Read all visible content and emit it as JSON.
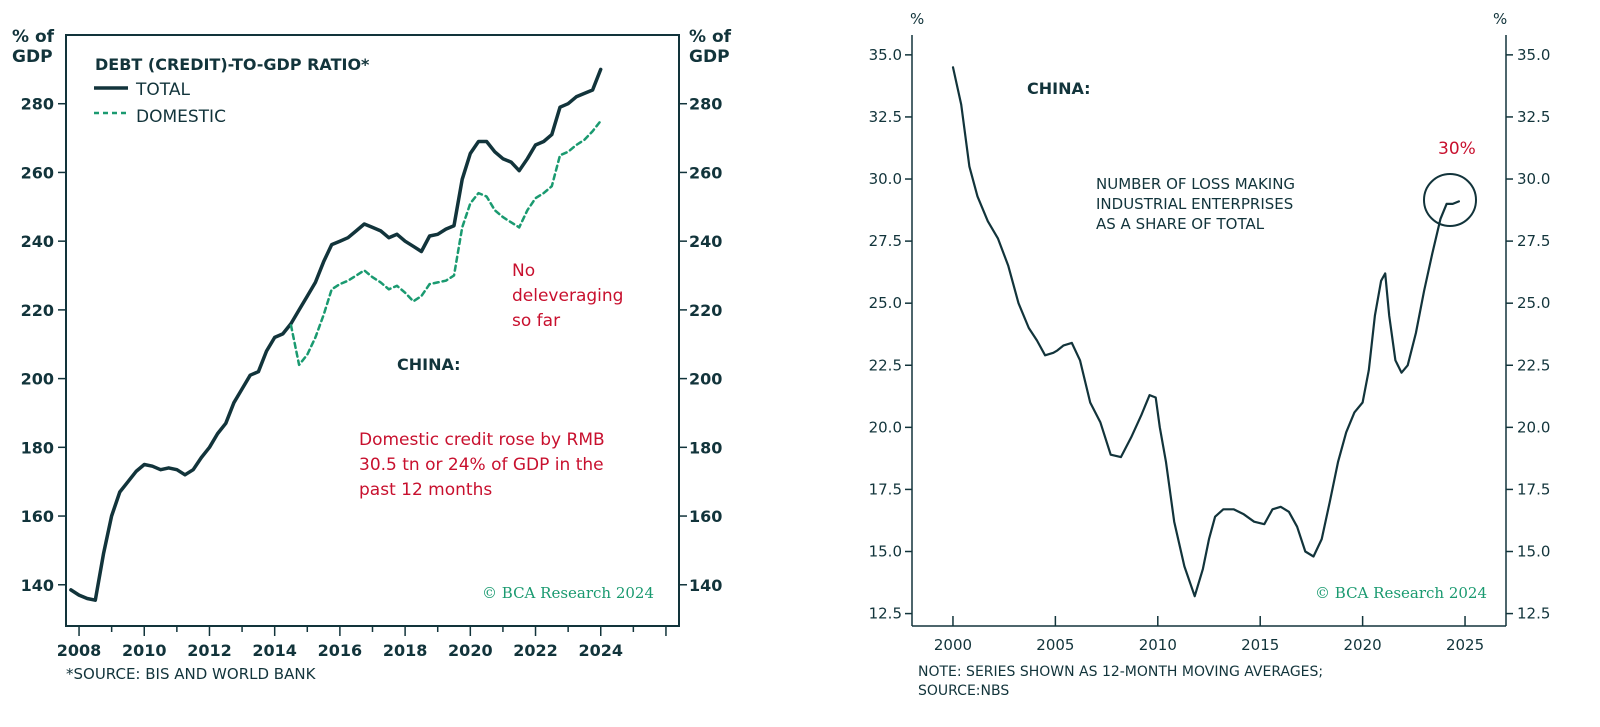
{
  "colors": {
    "navy": "#12343b",
    "green": "#1a9a70",
    "red": "#c8102e"
  },
  "chart_data": [
    {
      "type": "line",
      "title": "DEBT (CREDIT)-TO-GDP RATIO*",
      "ylabel_left": "% of GDP",
      "ylabel_right": "% of GDP",
      "ylim": [
        128,
        300
      ],
      "xlim": [
        2007.6,
        2026.4
      ],
      "xticks": [
        "2008",
        "2010",
        "2012",
        "2014",
        "2016",
        "2018",
        "2020",
        "2022",
        "2024"
      ],
      "yticks": [
        "140",
        "160",
        "180",
        "200",
        "220",
        "240",
        "260",
        "280"
      ],
      "panel_label": "CHINA:",
      "annotations": [
        "No",
        "deleveraging",
        "so far"
      ],
      "annotation2": [
        "Domestic credit rose by RMB",
        "30.5 tn or 24% of GDP in the",
        "past 12 months"
      ],
      "watermark": "© BCA Research 2024",
      "footnote": "*SOURCE: BIS AND WORLD BANK",
      "series": [
        {
          "name": "TOTAL",
          "style": "solid",
          "x": [
            2007.75,
            2008.0,
            2008.25,
            2008.5,
            2008.75,
            2009.0,
            2009.25,
            2009.5,
            2009.75,
            2010.0,
            2010.25,
            2010.5,
            2010.75,
            2011.0,
            2011.25,
            2011.5,
            2011.75,
            2012.0,
            2012.25,
            2012.5,
            2012.75,
            2013.0,
            2013.25,
            2013.5,
            2013.75,
            2014.0,
            2014.25,
            2014.5,
            2014.75,
            2015.0,
            2015.25,
            2015.5,
            2015.75,
            2016.0,
            2016.25,
            2016.5,
            2016.75,
            2017.0,
            2017.25,
            2017.5,
            2017.75,
            2018.0,
            2018.25,
            2018.5,
            2018.75,
            2019.0,
            2019.25,
            2019.5,
            2019.75,
            2020.0,
            2020.25,
            2020.5,
            2020.75,
            2021.0,
            2021.25,
            2021.5,
            2021.75,
            2022.0,
            2022.25,
            2022.5,
            2022.75,
            2023.0,
            2023.25,
            2023.5,
            2023.75,
            2024.0
          ],
          "values": [
            138.5,
            137,
            136,
            135.5,
            149,
            160,
            167,
            170,
            173,
            175,
            174.5,
            173.5,
            174,
            173.5,
            172,
            173.5,
            177,
            180,
            184,
            187,
            193,
            197,
            201,
            202,
            208,
            212,
            213,
            216,
            220,
            224,
            228,
            234,
            239,
            240,
            241,
            243,
            245,
            244,
            243,
            241,
            242,
            240,
            238.5,
            237,
            241.5,
            242,
            243.5,
            244.5,
            258,
            265.5,
            269,
            269,
            266,
            264,
            263,
            260.5,
            264,
            268,
            269,
            271,
            279,
            280,
            282,
            283,
            284,
            290
          ]
        },
        {
          "name": "DOMESTIC",
          "style": "dashed",
          "x": [
            2014.5,
            2014.75,
            2015.0,
            2015.25,
            2015.5,
            2015.75,
            2016.0,
            2016.25,
            2016.5,
            2016.75,
            2017.0,
            2017.25,
            2017.5,
            2017.75,
            2018.0,
            2018.25,
            2018.5,
            2018.75,
            2019.0,
            2019.25,
            2019.5,
            2019.75,
            2020.0,
            2020.25,
            2020.5,
            2020.75,
            2021.0,
            2021.25,
            2021.5,
            2021.75,
            2022.0,
            2022.25,
            2022.5,
            2022.75,
            2023.0,
            2023.25,
            2023.5,
            2023.75,
            2024.0
          ],
          "values": [
            215.5,
            204,
            207,
            212,
            218.5,
            226,
            227.5,
            228.5,
            230,
            231.5,
            229.5,
            228,
            226,
            227,
            225,
            222.5,
            224,
            227.5,
            228,
            228.5,
            230,
            244,
            251,
            254,
            253,
            249,
            247,
            245.5,
            244,
            249,
            252.5,
            254,
            256,
            265,
            266,
            268,
            269.5,
            272,
            275
          ]
        }
      ]
    },
    {
      "type": "line",
      "title": "NUMBER OF LOSS MAKING INDUSTRIAL ENTERPRISES AS A SHARE OF TOTAL",
      "title_lines": [
        "NUMBER OF LOSS MAKING",
        "INDUSTRIAL ENTERPRISES",
        "AS A SHARE OF TOTAL"
      ],
      "ylabel_left": "%",
      "ylabel_right": "%",
      "ylim": [
        12.0,
        35.8
      ],
      "xlim": [
        1998.0,
        2027.0
      ],
      "xticks": [
        "2000",
        "2005",
        "2010",
        "2015",
        "2020",
        "2025"
      ],
      "yticks": [
        "12.5",
        "15.0",
        "17.5",
        "20.0",
        "22.5",
        "25.0",
        "27.5",
        "30.0",
        "32.5",
        "35.0"
      ],
      "panel_label": "CHINA:",
      "highlight_label": "30%",
      "watermark": "© BCA Research 2024",
      "note_lines": [
        "NOTE: SERIES SHOWN AS 12-MONTH MOVING AVERAGES;",
        "SOURCE:NBS"
      ],
      "series": [
        {
          "name": "share",
          "style": "solid",
          "x": [
            2000.0,
            2000.4,
            2000.8,
            2001.2,
            2001.7,
            2002.2,
            2002.7,
            2003.2,
            2003.7,
            2004.1,
            2004.5,
            2004.9,
            2005.1,
            2005.4,
            2005.8,
            2006.2,
            2006.7,
            2007.2,
            2007.7,
            2008.2,
            2008.7,
            2009.2,
            2009.6,
            2009.9,
            2010.1,
            2010.4,
            2010.8,
            2011.3,
            2011.8,
            2012.2,
            2012.5,
            2012.8,
            2013.2,
            2013.7,
            2014.2,
            2014.7,
            2015.2,
            2015.6,
            2016.0,
            2016.4,
            2016.8,
            2017.2,
            2017.6,
            2018.0,
            2018.4,
            2018.8,
            2019.2,
            2019.6,
            2020.0,
            2020.3,
            2020.6,
            2020.9,
            2021.1,
            2021.3,
            2021.6,
            2021.9,
            2022.2,
            2022.6,
            2023.0,
            2023.4,
            2023.8,
            2024.1,
            2024.4,
            2024.7
          ],
          "values": [
            34.5,
            33.0,
            30.5,
            29.3,
            28.3,
            27.6,
            26.5,
            25.0,
            24.0,
            23.5,
            22.9,
            23.0,
            23.1,
            23.3,
            23.4,
            22.7,
            21.0,
            20.2,
            18.9,
            18.8,
            19.6,
            20.5,
            21.3,
            21.2,
            20.0,
            18.6,
            16.2,
            14.4,
            13.2,
            14.3,
            15.5,
            16.4,
            16.7,
            16.7,
            16.5,
            16.2,
            16.1,
            16.7,
            16.8,
            16.6,
            16.0,
            15.0,
            14.8,
            15.5,
            17.0,
            18.6,
            19.8,
            20.6,
            21.0,
            22.3,
            24.5,
            25.9,
            26.2,
            24.5,
            22.7,
            22.2,
            22.5,
            23.8,
            25.5,
            27.0,
            28.4,
            29.0,
            29.0,
            29.1
          ]
        }
      ]
    }
  ]
}
